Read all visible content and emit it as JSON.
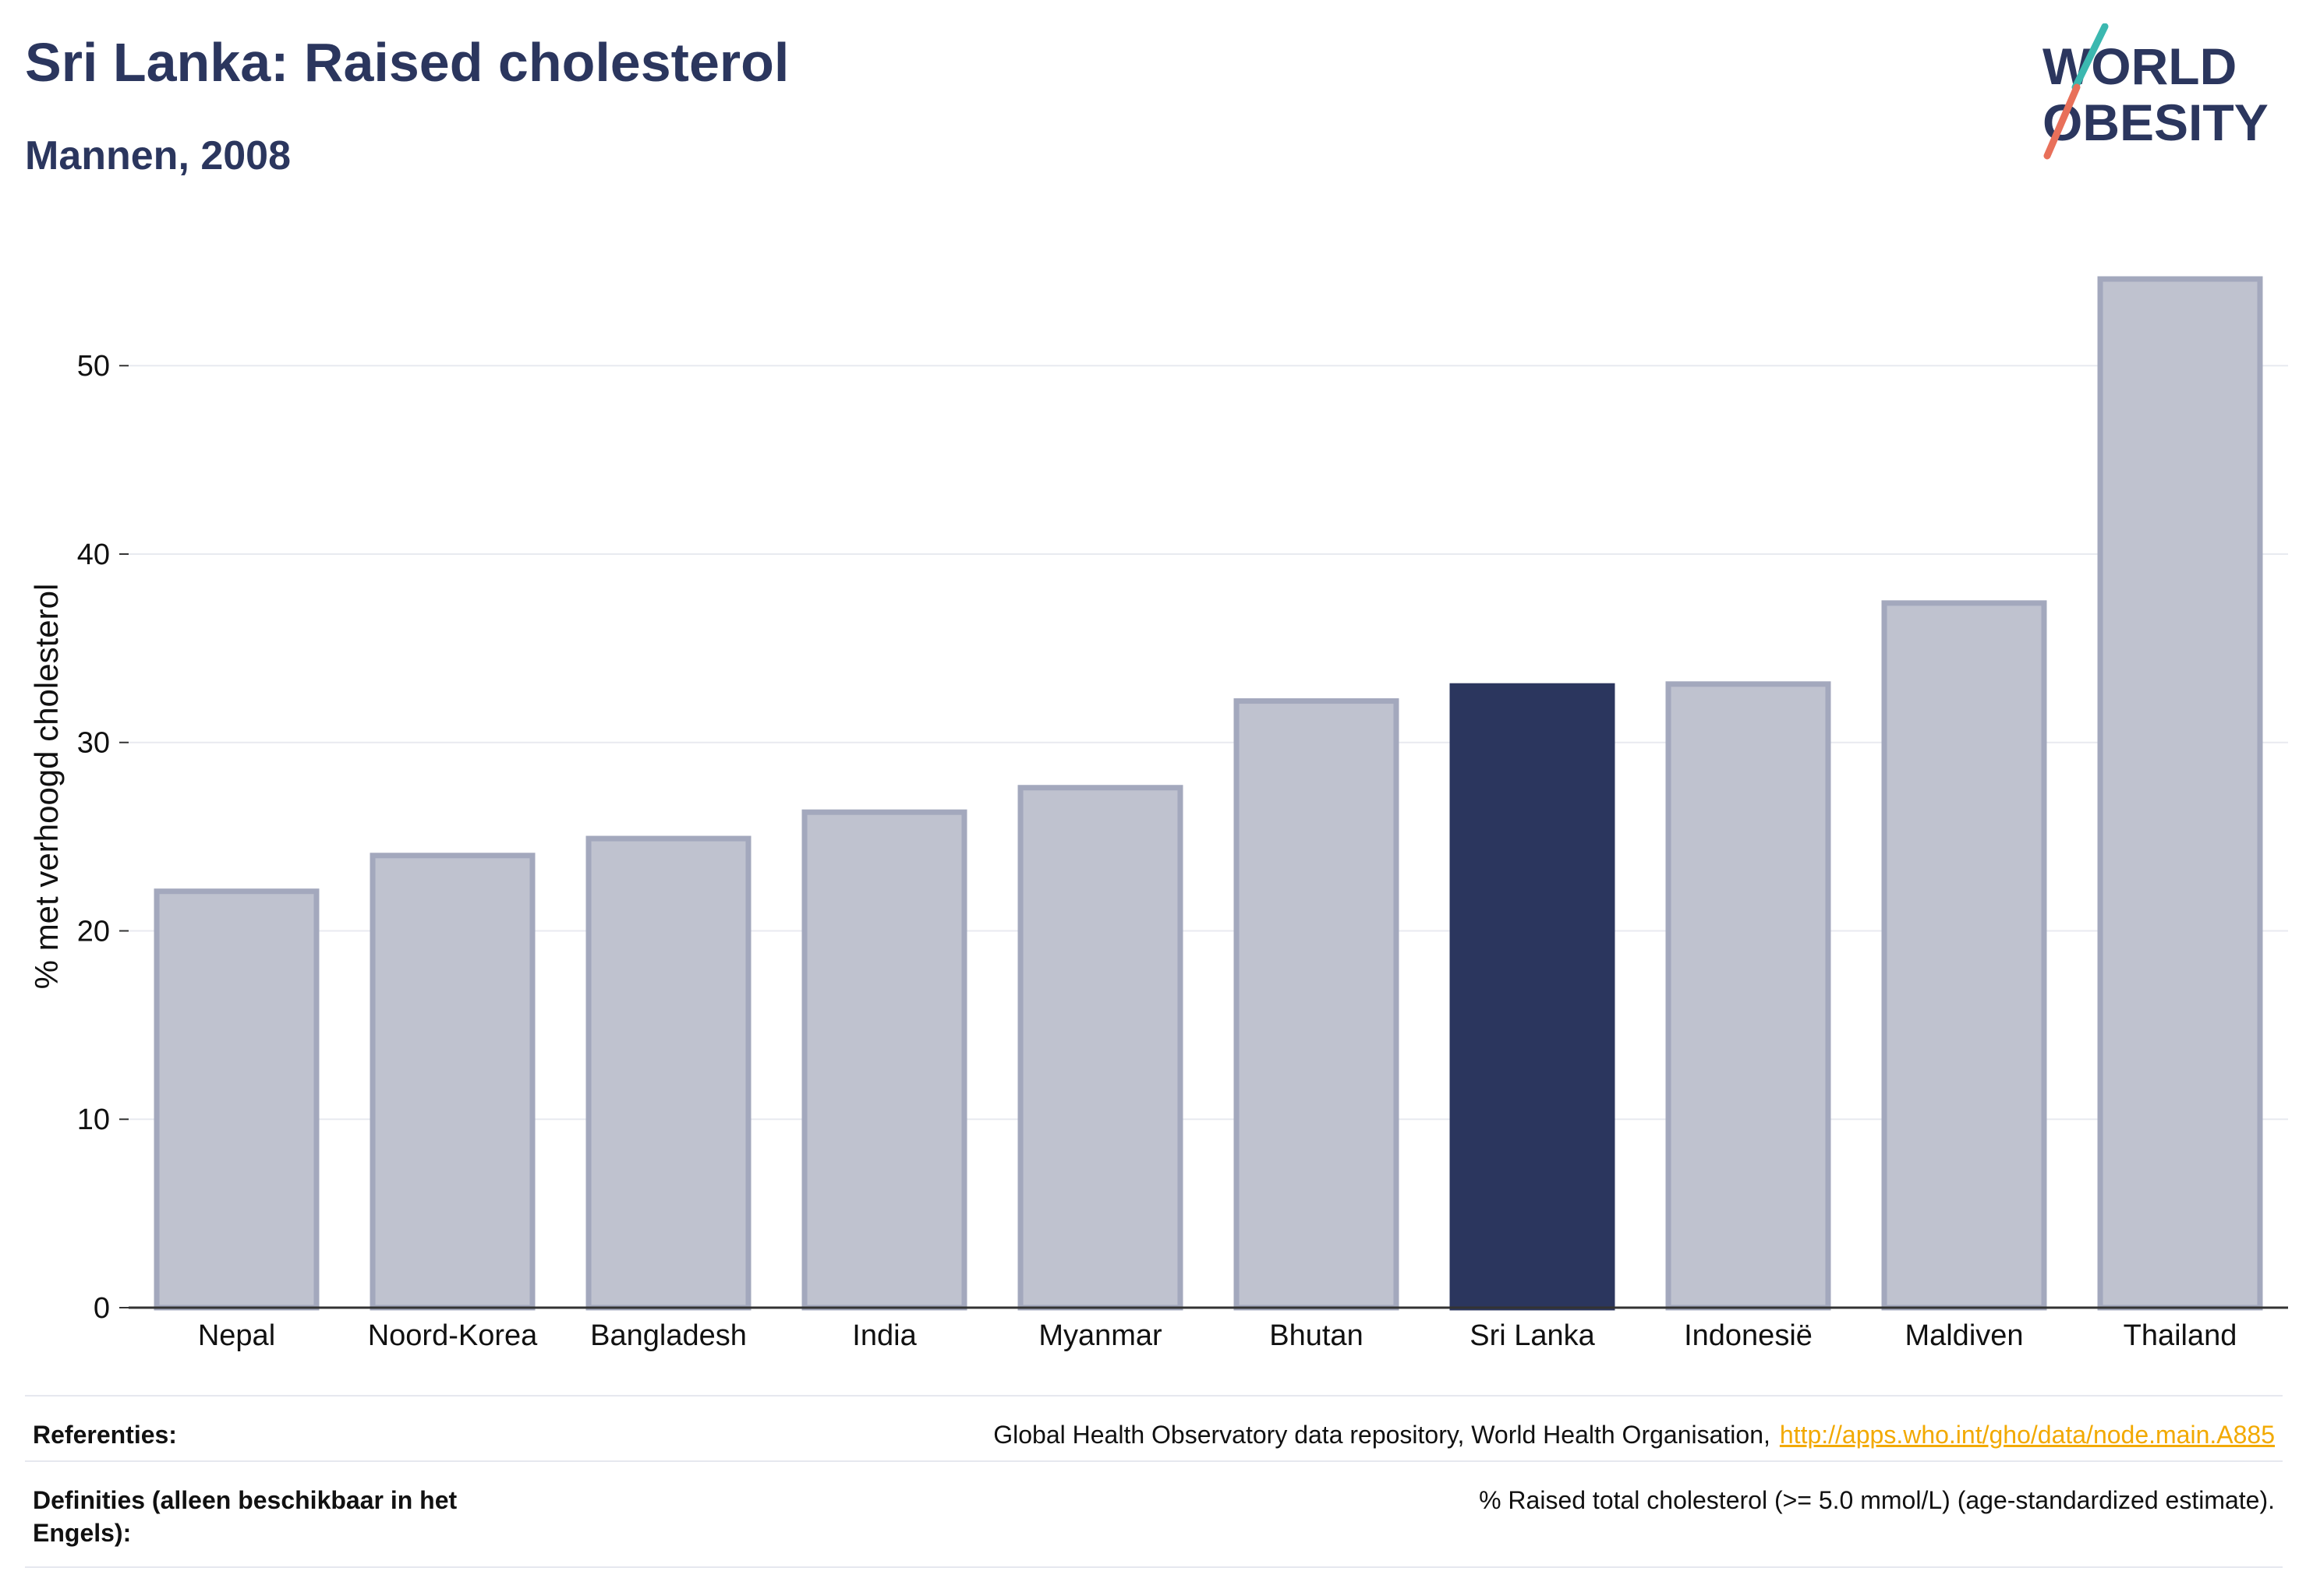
{
  "title": "Sri Lanka: Raised cholesterol",
  "subtitle": "Mannen, 2008",
  "logo": {
    "line1": "WORLD",
    "line2": "OBESITY"
  },
  "colors": {
    "highlight": "#2b365e",
    "bar": "#bfc2cf",
    "bar_border": "#a3a8bd",
    "text": "#2b365e",
    "link": "#f2a900"
  },
  "chart_data": {
    "type": "bar",
    "title": "Sri Lanka: Raised cholesterol",
    "subtitle": "Mannen, 2008",
    "xlabel": "",
    "ylabel": "% met verhoogd cholesterol",
    "ylim": [
      0,
      57
    ],
    "yticks": [
      0,
      10,
      20,
      30,
      40,
      50
    ],
    "grid": true,
    "categories": [
      "Nepal",
      "Noord-Korea",
      "Bangladesh",
      "India",
      "Myanmar",
      "Bhutan",
      "Sri Lanka",
      "Indonesië",
      "Maldiven",
      "Thailand"
    ],
    "values": [
      22.1,
      24.0,
      24.9,
      26.3,
      27.6,
      32.2,
      33.0,
      33.1,
      37.4,
      54.6
    ],
    "highlight": "Sri Lanka"
  },
  "references": {
    "label": "Referenties:",
    "text": "Global Health Observatory data repository, World Health Organisation,",
    "link": "http://apps.who.int/gho/data/node.main.A885"
  },
  "definitions": {
    "label": "Definities (alleen beschikbaar in het Engels):",
    "text": "% Raised total cholesterol (>= 5.0 mmol/L) (age-standardized estimate)."
  }
}
